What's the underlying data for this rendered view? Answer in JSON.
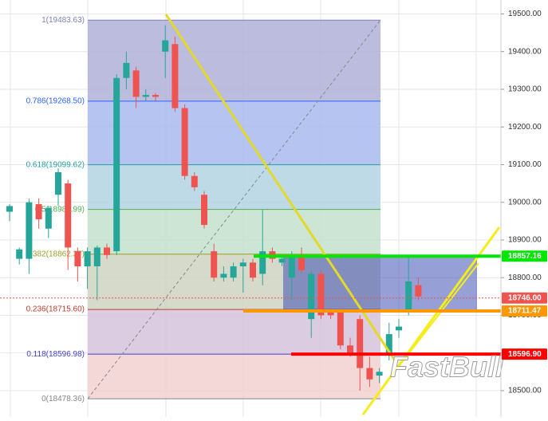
{
  "chart_data": {
    "type": "candlestick",
    "up_color": "#26a69a",
    "down_color": "#ef5350",
    "open": [
      18975,
      18850,
      18850,
      18995,
      18930,
      19020,
      19050,
      18870,
      18830,
      18830,
      18880,
      18870,
      19330,
      19350,
      19280,
      19285,
      19400,
      19420,
      19250,
      19070,
      19020,
      18870,
      18800,
      18800,
      18830,
      18840,
      18810,
      18870,
      18840,
      18800,
      18860,
      18690,
      18810,
      18710,
      18710,
      18620,
      18690,
      18560,
      18540,
      18600,
      18660,
      18710,
      18780
    ],
    "high": [
      18995,
      18880,
      19010,
      19010,
      18990,
      19090,
      19060,
      18880,
      18880,
      18885,
      18890,
      19340,
      19400,
      19360,
      19300,
      19290,
      19470,
      19440,
      19260,
      19080,
      19030,
      18890,
      18830,
      18840,
      18850,
      18850,
      18980,
      18880,
      18860,
      18870,
      18880,
      18820,
      18820,
      18720,
      18720,
      18640,
      18700,
      18590,
      18560,
      18680,
      18690,
      18860,
      18800
    ],
    "low": [
      18950,
      18835,
      18810,
      18930,
      18905,
      18990,
      18820,
      18790,
      18770,
      18740,
      18850,
      18860,
      19300,
      19250,
      19270,
      19270,
      19330,
      19240,
      19060,
      19030,
      18930,
      18790,
      18790,
      18790,
      18760,
      18790,
      18780,
      18840,
      18830,
      18740,
      18810,
      18640,
      18690,
      18690,
      18610,
      18590,
      18500,
      18510,
      18520,
      18580,
      18640,
      18700,
      18740
    ],
    "close": [
      18990,
      18875,
      19000,
      18955,
      18985,
      19080,
      18880,
      18830,
      18870,
      18880,
      18860,
      19330,
      19370,
      19280,
      19285,
      19280,
      19430,
      19250,
      19070,
      19040,
      18940,
      18800,
      18810,
      18830,
      18840,
      18800,
      18870,
      18850,
      18850,
      18860,
      18820,
      18810,
      18700,
      18700,
      18620,
      18600,
      18560,
      18530,
      18550,
      18650,
      18670,
      18790,
      18750
    ],
    "ylim": [
      18430,
      19537
    ],
    "yticks": [
      {
        "value": 18500,
        "label": "18500.00"
      },
      {
        "value": 18600,
        "label": "18600.00"
      },
      {
        "value": 18700,
        "label": "18700.00"
      },
      {
        "value": 18800,
        "label": "18800.00"
      },
      {
        "value": 18900,
        "label": "18900.00"
      },
      {
        "value": 19000,
        "label": "19000.00"
      },
      {
        "value": 19100,
        "label": "19100.00"
      },
      {
        "value": 19200,
        "label": "19200.00"
      },
      {
        "value": 19300,
        "label": "19300.00"
      },
      {
        "value": 19400,
        "label": "19400.00"
      },
      {
        "value": 19500,
        "label": "19500.00"
      }
    ],
    "grid": true,
    "fib_levels": [
      {
        "label": "1(19483.63)",
        "price": 19483.63,
        "color": "#7e7eb8"
      },
      {
        "label": "0.786(19268.50)",
        "price": 19268.5,
        "color": "#2962ff"
      },
      {
        "label": "0.618(19099.62)",
        "price": 19099.62,
        "color": "#26a0a0"
      },
      {
        "label": "0.5(18980.99)",
        "price": 18980.99,
        "color": "#4caf50"
      },
      {
        "label": "0.382(18862.37)",
        "price": 18862.37,
        "color": "#9aa028"
      },
      {
        "label": "0.236(18715.60)",
        "price": 18715.6,
        "color": "#c0392b"
      },
      {
        "label": "0.118(18596.98)",
        "price": 18596.98,
        "color": "#3f3fcc"
      },
      {
        "label": "0(18478.36)",
        "price": 18478.36,
        "color": "#888888"
      }
    ],
    "fib_fills": [
      "#b0b0d8",
      "#a9baf0",
      "#b4d3e3",
      "#c3e0cc",
      "#cfd3c1",
      "#d6c3dc",
      "#f2d0d0"
    ],
    "price_tags": [
      {
        "value": 18857.16,
        "color": "#00e600"
      },
      {
        "value": {
          "value": 18746,
          "label": "18746.00"
        },
        "color": "#ef5350"
      },
      {
        "value": {
          "value": 18711.47,
          "label": "18711.47"
        },
        "color": "#ff9800"
      },
      {
        "value": {
          "value": 18596.9,
          "label": "18596.90"
        },
        "color": "#ff0000"
      }
    ],
    "watermark": "FastBull"
  }
}
